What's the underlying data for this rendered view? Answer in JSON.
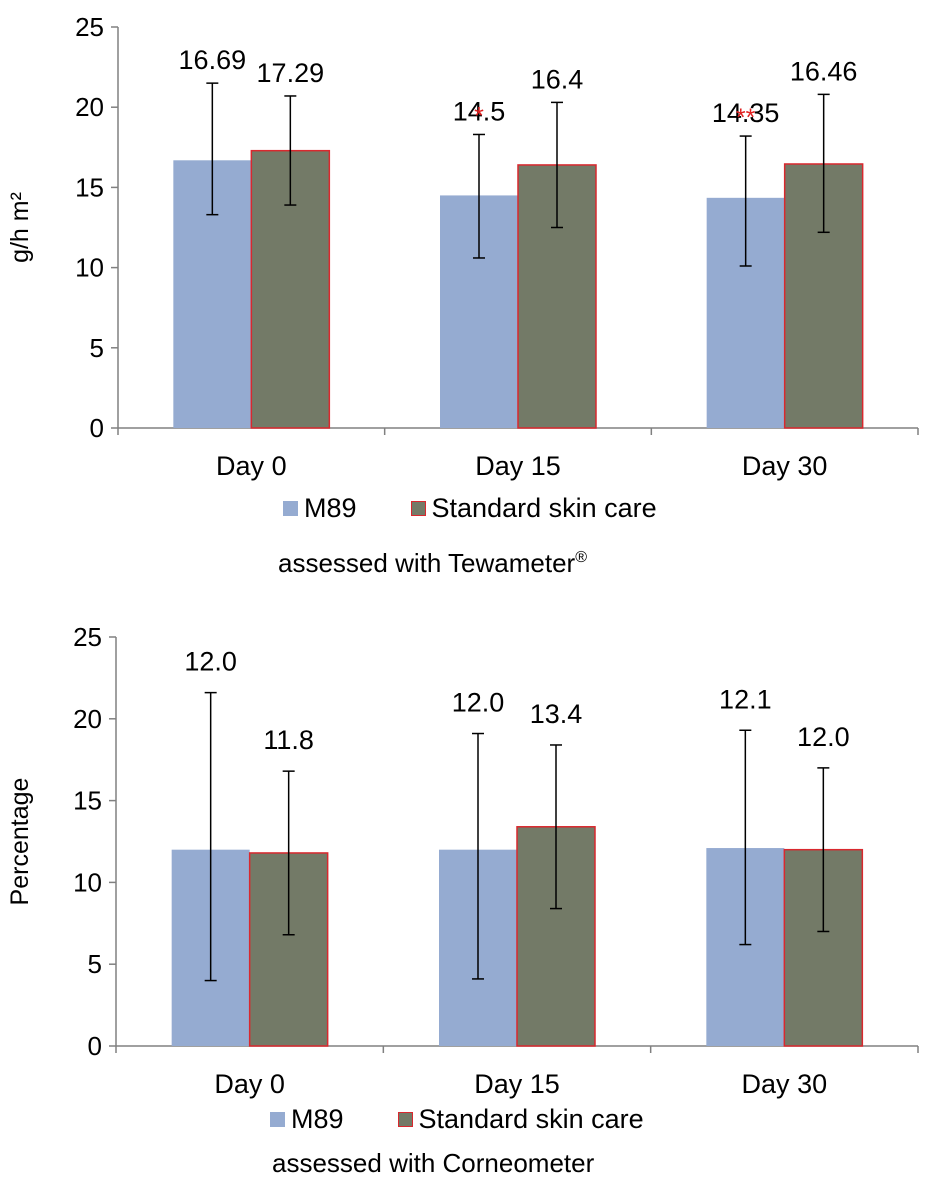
{
  "colors": {
    "m89": "#95abd1",
    "standard_fill": "#737a67",
    "standard_edge": "#d9282e",
    "significance": "#e02020"
  },
  "chart_data": [
    {
      "type": "bar",
      "categories": [
        "Day 0",
        "Day 15",
        "Day 30"
      ],
      "ylabel": "g/h m²",
      "ylim": [
        0,
        25
      ],
      "yticks": [
        "0",
        "5",
        "10",
        "15",
        "20",
        "25"
      ],
      "grid": false,
      "legend_position": "bottom",
      "series": [
        {
          "name": "M89",
          "values": [
            16.69,
            14.5,
            14.35
          ],
          "labels": [
            "16.69",
            "14.5",
            "14.35"
          ],
          "err_low": [
            13.3,
            10.6,
            10.1
          ],
          "err_high": [
            21.5,
            18.3,
            18.2
          ],
          "significance": [
            "",
            "*",
            "**"
          ]
        },
        {
          "name": "Standard skin care",
          "values": [
            17.29,
            16.4,
            16.46
          ],
          "labels": [
            "17.29",
            "16.4",
            "16.46"
          ],
          "err_low": [
            13.9,
            12.5,
            12.2
          ],
          "err_high": [
            20.7,
            20.3,
            20.8
          ],
          "significance": [
            "",
            "",
            ""
          ]
        }
      ],
      "caption": "assessed with Tewameter",
      "caption_mark": "®"
    },
    {
      "type": "bar",
      "categories": [
        "Day 0",
        "Day 15",
        "Day 30"
      ],
      "ylabel": "Percentage",
      "ylim": [
        0,
        25
      ],
      "yticks": [
        "0",
        "5",
        "10",
        "15",
        "20",
        "25"
      ],
      "grid": false,
      "legend_position": "bottom",
      "series": [
        {
          "name": "M89",
          "values": [
            12.0,
            12.0,
            12.1
          ],
          "labels": [
            "12.0",
            "12.0",
            "12.1"
          ],
          "err_low": [
            4.0,
            4.1,
            6.2
          ],
          "err_high": [
            21.6,
            19.1,
            19.3
          ],
          "significance": [
            "",
            "",
            ""
          ]
        },
        {
          "name": "Standard skin care",
          "values": [
            11.8,
            13.4,
            12.0
          ],
          "labels": [
            "11.8",
            "13.4",
            "12.0"
          ],
          "err_low": [
            6.8,
            8.4,
            7.0
          ],
          "err_high": [
            16.8,
            18.4,
            17.0
          ],
          "significance": [
            "",
            "",
            ""
          ]
        }
      ],
      "caption": "assessed with Corneometer",
      "caption_mark": ""
    }
  ]
}
